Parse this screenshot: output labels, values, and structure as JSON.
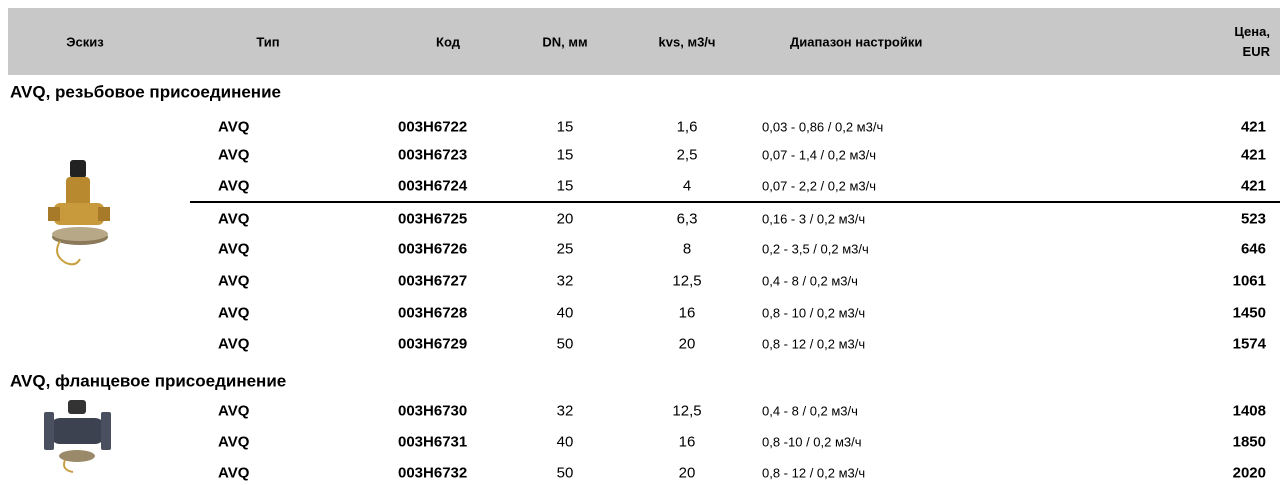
{
  "header": {
    "columns": [
      "Эскиз",
      "Тип",
      "Код",
      "DN, мм",
      "kvs, м3/ч",
      "Диапазон настройки",
      "Цена, EUR"
    ]
  },
  "sections": [
    {
      "title": "AVQ, резьбовое присоединение",
      "rows": [
        [
          "AVQ",
          "003H6722",
          15,
          "1,6",
          "0,03 - 0,86 / 0,2 м3/ч",
          421
        ],
        [
          "AVQ",
          "003H6723",
          15,
          "2,5",
          "0,07 - 1,4 / 0,2 м3/ч",
          421
        ],
        [
          "AVQ",
          "003H6724",
          15,
          4,
          "0,07 - 2,2 / 0,2 м3/ч",
          421
        ],
        [
          "AVQ",
          "003H6725",
          20,
          "6,3",
          "0,16 - 3 / 0,2 м3/ч",
          523
        ],
        [
          "AVQ",
          "003H6726",
          25,
          8,
          "0,2 - 3,5 / 0,2 м3/ч",
          646
        ],
        [
          "AVQ",
          "003H6727",
          32,
          "12,5",
          "0,4 - 8 / 0,2 м3/ч",
          1061
        ],
        [
          "AVQ",
          "003H6728",
          40,
          16,
          "0,8 - 10 / 0,2 м3/ч",
          1450
        ],
        [
          "AVQ",
          "003H6729",
          50,
          20,
          "0,8 - 12 / 0,2 м3/ч",
          1574
        ]
      ]
    },
    {
      "title": "AVQ, фланцевое присоединение",
      "rows": [
        [
          "AVQ",
          "003H6730",
          32,
          "12,5",
          "0,4 - 8 / 0,2 м3/ч",
          1408
        ],
        [
          "AVQ",
          "003H6731",
          40,
          16,
          "0,8 -10 / 0,2 м3/ч",
          1850
        ],
        [
          "AVQ",
          "003H6732",
          50,
          20,
          "0,8 - 12 / 0,2 м3/ч",
          2020
        ]
      ]
    }
  ]
}
